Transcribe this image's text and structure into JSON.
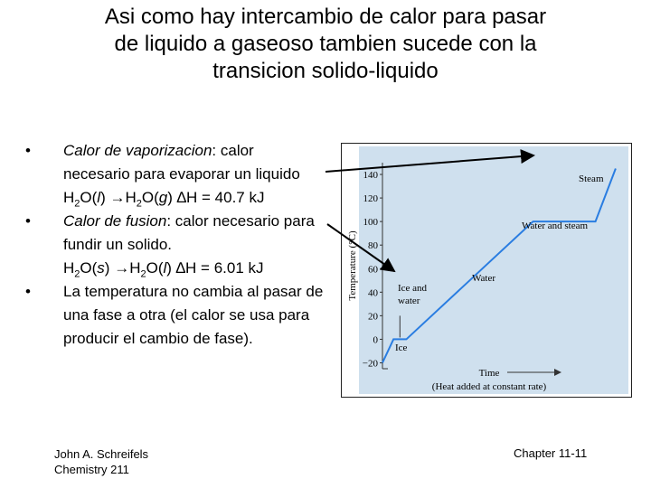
{
  "title": {
    "line1": "Asi como hay intercambio de calor para pasar",
    "line2": "de liquido a gaseoso tambien sucede con la",
    "line3": "transicion solido-liquido"
  },
  "bullets": {
    "b1_term": "Calor de vaporizacion",
    "b1_text": ": calor necesario para evaporar un liquido",
    "b1_eq": {
      "a": "H",
      "a_sub": "2",
      "b": "O(",
      "c": "l",
      "d": ") ",
      "arrow": "→",
      "e": "H",
      "e_sub": "2",
      "f": "O(",
      "g": "g",
      "h": ")   ∆H = 40.7 kJ"
    },
    "b2_term": "Calor de fusion",
    "b2_text": ": calor necesario para fundir un solido.",
    "b2_eq": {
      "a": "H",
      "a_sub": "2",
      "b": "O(",
      "c": "s",
      "d": ") ",
      "arrow": "→",
      "e": "H",
      "e_sub": "2",
      "f": "O(",
      "g": "l",
      "h": ")   ∆H = 6.01 kJ"
    },
    "b3_text": "La temperatura no cambia al pasar de una fase a otra (el calor se usa para producir el cambio de fase).",
    "marker": "•"
  },
  "footer": {
    "author": "John A. Schreifels",
    "course": "Chemistry 211",
    "chapter": "Chapter 11-11"
  },
  "chart_data": {
    "type": "line",
    "title": "",
    "xlabel": "Time",
    "xlabel2": "(Heat added at constant rate)",
    "ylabel": "Temperature (°C)",
    "ylim": [
      -25,
      150
    ],
    "yticks": [
      "140",
      "120",
      "100",
      "80",
      "60",
      "40",
      "20",
      "0",
      "−20"
    ],
    "ytick_values": [
      140,
      120,
      100,
      80,
      60,
      40,
      20,
      0,
      -20
    ],
    "series": [
      {
        "x": [
          0,
          1.2,
          2.6,
          16.4,
          23.2,
          25.4
        ],
        "y": [
          -20,
          0,
          0,
          100,
          100,
          145
        ]
      }
    ],
    "annotations": {
      "steam": "Steam",
      "water_steam": "Water and steam",
      "water": "Water",
      "ice_water_1": "Ice and",
      "ice_water_2": "water",
      "ice": "Ice"
    },
    "colors": {
      "background": "#cfe0ee",
      "line": "#2a7de1"
    }
  }
}
